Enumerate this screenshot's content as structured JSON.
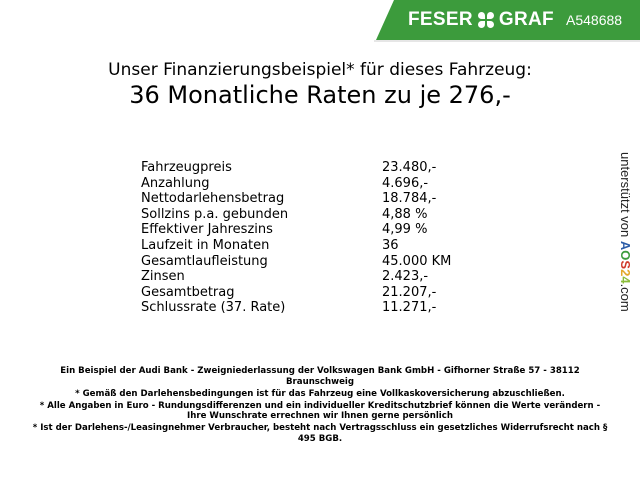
{
  "header": {
    "brand": "FESER",
    "brand2": "GRAF",
    "code": "A548688",
    "brand_color": "#3c9b3c",
    "logo_icon": "clover-icon"
  },
  "title": {
    "line1": "Unser Finanzierungsbeispiel* für dieses Fahrzeug:",
    "line2": "36 Monatliche Raten zu je 276,-"
  },
  "rows": [
    {
      "label": "Fahrzeugpreis",
      "value": "23.480,-"
    },
    {
      "label": "Anzahlung",
      "value": "4.696,-"
    },
    {
      "label": "Nettodarlehensbetrag",
      "value": "18.784,-"
    },
    {
      "label": "Sollzins p.a. gebunden",
      "value": "4,88 %"
    },
    {
      "label": "Effektiver Jahreszins",
      "value": "4,99 %"
    },
    {
      "label": "Laufzeit in Monaten",
      "value": "36"
    },
    {
      "label": "Gesamtlaufleistung",
      "value": "45.000 KM"
    },
    {
      "label": "Zinsen",
      "value": "2.423,-"
    },
    {
      "label": "Gesamtbetrag",
      "value": "21.207,-"
    },
    {
      "label": "Schlussrate (37. Rate)",
      "value": "11.271,-"
    }
  ],
  "side": {
    "prefix": "unterstützt von",
    "logo": "AOS24",
    "suffix": ".com"
  },
  "footer": [
    "Ein Beispiel der Audi Bank - Zweigniederlassung der Volkswagen Bank GmbH - Gifhorner Straße 57 - 38112 Braunschweig",
    "* Gemäß den Darlehensbedingungen ist für das Fahrzeug eine Vollkaskoversicherung abzuschließen.",
    "* Alle Angaben in Euro - Rundungsdifferenzen und ein individueller Kreditschutzbrief können die Werte verändern - Ihre Wunschrate errechnen wir Ihnen gerne persönlich",
    "* Ist der Darlehens-/Leasingnehmer Verbraucher, besteht nach Vertragsschluss ein gesetzliches Widerrufsrecht nach § 495 BGB."
  ]
}
